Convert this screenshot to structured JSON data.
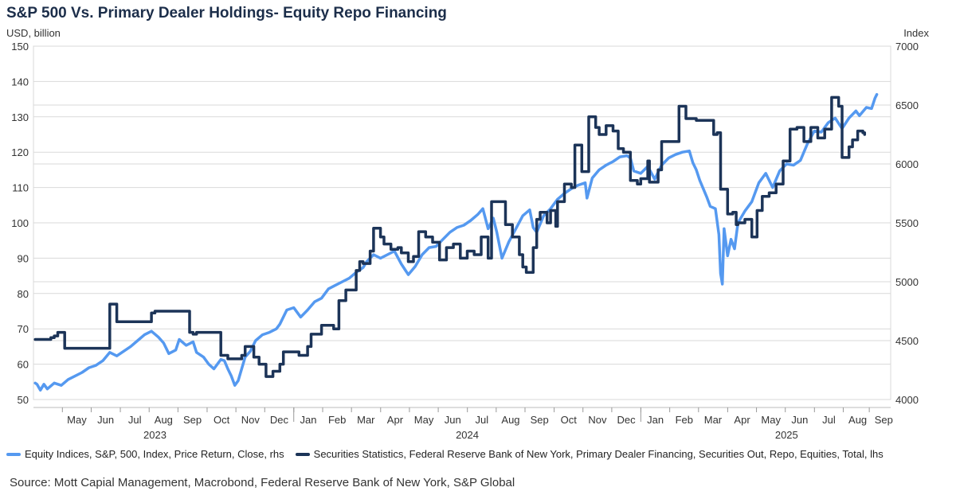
{
  "title": "S&P 500 Vs. Primary Dealer Holdings- Equity Repo Financing",
  "source": "Source: Mott Capial Management, Macrobond, Federal Reserve Bank of New York, S&P Global",
  "colors": {
    "sp500": "#5599f0",
    "repo": "#1c3458",
    "grid": "#d9d9d9"
  },
  "chart_data": {
    "type": "line",
    "title": "S&P 500 Vs. Primary Dealer Holdings- Equity Repo Financing",
    "left_axis": {
      "label": "USD, billion",
      "min": 50,
      "max": 150,
      "ticks": [
        50,
        60,
        70,
        80,
        90,
        100,
        110,
        120,
        130,
        140,
        150
      ]
    },
    "right_axis": {
      "label": "Index",
      "min": 4000,
      "max": 7000,
      "ticks": [
        4000,
        4500,
        5000,
        5500,
        6000,
        6500,
        7000
      ]
    },
    "x_range": [
      2023.25,
      2025.72
    ],
    "month_ticks": [
      {
        "label": "May",
        "t": 2023.375
      },
      {
        "label": "Jun",
        "t": 2023.458
      },
      {
        "label": "Jul",
        "t": 2023.542
      },
      {
        "label": "Aug",
        "t": 2023.625
      },
      {
        "label": "Sep",
        "t": 2023.708
      },
      {
        "label": "Oct",
        "t": 2023.792
      },
      {
        "label": "Nov",
        "t": 2023.875
      },
      {
        "label": "Dec",
        "t": 2023.958
      },
      {
        "label": "Jan",
        "t": 2024.042
      },
      {
        "label": "Feb",
        "t": 2024.125
      },
      {
        "label": "Mar",
        "t": 2024.208
      },
      {
        "label": "Apr",
        "t": 2024.292
      },
      {
        "label": "May",
        "t": 2024.375
      },
      {
        "label": "Jun",
        "t": 2024.458
      },
      {
        "label": "Jul",
        "t": 2024.542
      },
      {
        "label": "Aug",
        "t": 2024.625
      },
      {
        "label": "Sep",
        "t": 2024.708
      },
      {
        "label": "Oct",
        "t": 2024.792
      },
      {
        "label": "Nov",
        "t": 2024.875
      },
      {
        "label": "Dec",
        "t": 2024.958
      },
      {
        "label": "Jan",
        "t": 2025.042
      },
      {
        "label": "Feb",
        "t": 2025.125
      },
      {
        "label": "Mar",
        "t": 2025.208
      },
      {
        "label": "Apr",
        "t": 2025.292
      },
      {
        "label": "May",
        "t": 2025.375
      },
      {
        "label": "Jun",
        "t": 2025.458
      },
      {
        "label": "Jul",
        "t": 2025.542
      },
      {
        "label": "Aug",
        "t": 2025.625
      },
      {
        "label": "Sep",
        "t": 2025.7
      }
    ],
    "years": [
      {
        "label": "2023",
        "t": 2023.6
      },
      {
        "label": "2024",
        "t": 2024.5
      },
      {
        "label": "2025",
        "t": 2025.42
      }
    ],
    "series": [
      {
        "name": "Equity Indices, S&P, 500, Index, Price Return, Close, rhs",
        "axis": "right",
        "style": "smooth",
        "points": [
          [
            2023.255,
            4140
          ],
          [
            2023.26,
            4130
          ],
          [
            2023.27,
            4080
          ],
          [
            2023.28,
            4130
          ],
          [
            2023.29,
            4090
          ],
          [
            2023.31,
            4140
          ],
          [
            2023.33,
            4120
          ],
          [
            2023.35,
            4170
          ],
          [
            2023.37,
            4200
          ],
          [
            2023.39,
            4230
          ],
          [
            2023.41,
            4270
          ],
          [
            2023.43,
            4290
          ],
          [
            2023.45,
            4330
          ],
          [
            2023.47,
            4400
          ],
          [
            2023.49,
            4370
          ],
          [
            2023.51,
            4410
          ],
          [
            2023.53,
            4450
          ],
          [
            2023.55,
            4500
          ],
          [
            2023.57,
            4550
          ],
          [
            2023.59,
            4580
          ],
          [
            2023.61,
            4530
          ],
          [
            2023.625,
            4480
          ],
          [
            2023.64,
            4390
          ],
          [
            2023.66,
            4420
          ],
          [
            2023.67,
            4510
          ],
          [
            2023.69,
            4460
          ],
          [
            2023.71,
            4490
          ],
          [
            2023.72,
            4400
          ],
          [
            2023.74,
            4360
          ],
          [
            2023.755,
            4300
          ],
          [
            2023.77,
            4260
          ],
          [
            2023.79,
            4340
          ],
          [
            2023.8,
            4330
          ],
          [
            2023.81,
            4260
          ],
          [
            2023.82,
            4200
          ],
          [
            2023.83,
            4120
          ],
          [
            2023.84,
            4160
          ],
          [
            2023.86,
            4360
          ],
          [
            2023.875,
            4410
          ],
          [
            2023.89,
            4500
          ],
          [
            2023.91,
            4550
          ],
          [
            2023.93,
            4570
          ],
          [
            2023.95,
            4600
          ],
          [
            2023.96,
            4640
          ],
          [
            2023.98,
            4760
          ],
          [
            2024.0,
            4780
          ],
          [
            2024.02,
            4700
          ],
          [
            2024.04,
            4760
          ],
          [
            2024.06,
            4830
          ],
          [
            2024.08,
            4860
          ],
          [
            2024.1,
            4940
          ],
          [
            2024.12,
            4970
          ],
          [
            2024.14,
            5000
          ],
          [
            2024.16,
            5030
          ],
          [
            2024.18,
            5080
          ],
          [
            2024.2,
            5120
          ],
          [
            2024.21,
            5170
          ],
          [
            2024.23,
            5230
          ],
          [
            2024.25,
            5200
          ],
          [
            2024.27,
            5230
          ],
          [
            2024.29,
            5260
          ],
          [
            2024.31,
            5150
          ],
          [
            2024.33,
            5060
          ],
          [
            2024.35,
            5130
          ],
          [
            2024.37,
            5230
          ],
          [
            2024.39,
            5290
          ],
          [
            2024.41,
            5300
          ],
          [
            2024.43,
            5360
          ],
          [
            2024.45,
            5420
          ],
          [
            2024.47,
            5460
          ],
          [
            2024.49,
            5480
          ],
          [
            2024.51,
            5520
          ],
          [
            2024.53,
            5570
          ],
          [
            2024.545,
            5620
          ],
          [
            2024.56,
            5450
          ],
          [
            2024.575,
            5540
          ],
          [
            2024.585,
            5420
          ],
          [
            2024.6,
            5200
          ],
          [
            2024.62,
            5340
          ],
          [
            2024.64,
            5450
          ],
          [
            2024.66,
            5560
          ],
          [
            2024.68,
            5610
          ],
          [
            2024.69,
            5460
          ],
          [
            2024.7,
            5420
          ],
          [
            2024.72,
            5560
          ],
          [
            2024.74,
            5620
          ],
          [
            2024.76,
            5700
          ],
          [
            2024.78,
            5750
          ],
          [
            2024.8,
            5790
          ],
          [
            2024.82,
            5820
          ],
          [
            2024.84,
            5840
          ],
          [
            2024.845,
            5710
          ],
          [
            2024.86,
            5880
          ],
          [
            2024.88,
            5950
          ],
          [
            2024.9,
            5990
          ],
          [
            2024.92,
            6020
          ],
          [
            2024.94,
            6060
          ],
          [
            2024.96,
            6070
          ],
          [
            2024.97,
            6050
          ],
          [
            2024.98,
            5940
          ],
          [
            2025.0,
            5920
          ],
          [
            2025.02,
            5980
          ],
          [
            2025.04,
            5870
          ],
          [
            2025.06,
            5990
          ],
          [
            2025.08,
            6050
          ],
          [
            2025.1,
            6080
          ],
          [
            2025.12,
            6100
          ],
          [
            2025.14,
            6110
          ],
          [
            2025.15,
            6010
          ],
          [
            2025.16,
            5950
          ],
          [
            2025.17,
            5860
          ],
          [
            2025.19,
            5720
          ],
          [
            2025.2,
            5640
          ],
          [
            2025.215,
            5620
          ],
          [
            2025.225,
            5400
          ],
          [
            2025.23,
            5070
          ],
          [
            2025.235,
            4980
          ],
          [
            2025.24,
            5450
          ],
          [
            2025.25,
            5220
          ],
          [
            2025.26,
            5360
          ],
          [
            2025.27,
            5280
          ],
          [
            2025.28,
            5500
          ],
          [
            2025.3,
            5600
          ],
          [
            2025.32,
            5680
          ],
          [
            2025.34,
            5840
          ],
          [
            2025.36,
            5920
          ],
          [
            2025.38,
            5800
          ],
          [
            2025.4,
            5940
          ],
          [
            2025.42,
            6000
          ],
          [
            2025.44,
            5990
          ],
          [
            2025.46,
            6030
          ],
          [
            2025.48,
            6170
          ],
          [
            2025.5,
            6280
          ],
          [
            2025.52,
            6270
          ],
          [
            2025.54,
            6350
          ],
          [
            2025.56,
            6390
          ],
          [
            2025.58,
            6300
          ],
          [
            2025.6,
            6390
          ],
          [
            2025.62,
            6450
          ],
          [
            2025.63,
            6410
          ],
          [
            2025.65,
            6480
          ],
          [
            2025.665,
            6470
          ],
          [
            2025.675,
            6560
          ],
          [
            2025.68,
            6590
          ]
        ]
      },
      {
        "name": "Securities Statistics, Federal Reserve Bank of New York, Primary Dealer Financing, Securities Out, Repo, Equities, Total, lhs",
        "axis": "left",
        "style": "step",
        "points": [
          [
            2023.255,
            67
          ],
          [
            2023.3,
            67.5
          ],
          [
            2023.31,
            68
          ],
          [
            2023.32,
            69
          ],
          [
            2023.34,
            64.5
          ],
          [
            2023.465,
            64.5
          ],
          [
            2023.47,
            77
          ],
          [
            2023.49,
            72
          ],
          [
            2023.58,
            72
          ],
          [
            2023.59,
            74.5
          ],
          [
            2023.6,
            75
          ],
          [
            2023.69,
            75
          ],
          [
            2023.7,
            69
          ],
          [
            2023.71,
            68.5
          ],
          [
            2023.72,
            69
          ],
          [
            2023.78,
            69
          ],
          [
            2023.79,
            62.5
          ],
          [
            2023.81,
            61.5
          ],
          [
            2023.85,
            62.5
          ],
          [
            2023.86,
            65
          ],
          [
            2023.885,
            62
          ],
          [
            2023.9,
            60
          ],
          [
            2023.92,
            56.5
          ],
          [
            2023.94,
            58
          ],
          [
            2023.96,
            60
          ],
          [
            2023.97,
            63.5
          ],
          [
            2024.015,
            62.5
          ],
          [
            2024.04,
            65
          ],
          [
            2024.05,
            68.5
          ],
          [
            2024.08,
            71
          ],
          [
            2024.115,
            70
          ],
          [
            2024.13,
            78
          ],
          [
            2024.15,
            81
          ],
          [
            2024.18,
            86.5
          ],
          [
            2024.19,
            89
          ],
          [
            2024.2,
            88.5
          ],
          [
            2024.22,
            92
          ],
          [
            2024.23,
            98.5
          ],
          [
            2024.25,
            96
          ],
          [
            2024.26,
            94
          ],
          [
            2024.28,
            92.5
          ],
          [
            2024.3,
            93
          ],
          [
            2024.31,
            91.5
          ],
          [
            2024.33,
            89
          ],
          [
            2024.345,
            90.5
          ],
          [
            2024.36,
            97.5
          ],
          [
            2024.38,
            96
          ],
          [
            2024.4,
            94.5
          ],
          [
            2024.42,
            89.5
          ],
          [
            2024.44,
            93
          ],
          [
            2024.46,
            94
          ],
          [
            2024.48,
            90
          ],
          [
            2024.5,
            92
          ],
          [
            2024.52,
            91
          ],
          [
            2024.54,
            96
          ],
          [
            2024.56,
            90
          ],
          [
            2024.57,
            106
          ],
          [
            2024.61,
            99.5
          ],
          [
            2024.63,
            96
          ],
          [
            2024.65,
            91
          ],
          [
            2024.66,
            87.5
          ],
          [
            2024.67,
            86
          ],
          [
            2024.69,
            93
          ],
          [
            2024.7,
            101
          ],
          [
            2024.71,
            103
          ],
          [
            2024.73,
            100
          ],
          [
            2024.74,
            103.5
          ],
          [
            2024.755,
            99
          ],
          [
            2024.76,
            106
          ],
          [
            2024.78,
            111
          ],
          [
            2024.8,
            110
          ],
          [
            2024.81,
            122
          ],
          [
            2024.83,
            114.5
          ],
          [
            2024.85,
            130
          ],
          [
            2024.87,
            127
          ],
          [
            2024.88,
            125
          ],
          [
            2024.9,
            127.5
          ],
          [
            2024.92,
            126
          ],
          [
            2024.935,
            121
          ],
          [
            2024.95,
            120
          ],
          [
            2024.97,
            112
          ],
          [
            2024.99,
            111
          ],
          [
            2025.0,
            112.5
          ],
          [
            2025.02,
            117.5
          ],
          [
            2025.025,
            111.5
          ],
          [
            2025.05,
            115
          ],
          [
            2025.06,
            123
          ],
          [
            2025.11,
            133
          ],
          [
            2025.13,
            129.5
          ],
          [
            2025.16,
            129
          ],
          [
            2025.21,
            125
          ],
          [
            2025.22,
            125.5
          ],
          [
            2025.23,
            109.5
          ],
          [
            2025.25,
            102.5
          ],
          [
            2025.265,
            103
          ],
          [
            2025.275,
            99.5
          ],
          [
            2025.28,
            100
          ],
          [
            2025.3,
            101
          ],
          [
            2025.32,
            96
          ],
          [
            2025.335,
            103.5
          ],
          [
            2025.35,
            107.5
          ],
          [
            2025.37,
            108.5
          ],
          [
            2025.39,
            111
          ],
          [
            2025.41,
            117.5
          ],
          [
            2025.43,
            126.5
          ],
          [
            2025.45,
            127
          ],
          [
            2025.47,
            123
          ],
          [
            2025.49,
            127
          ],
          [
            2025.51,
            124
          ],
          [
            2025.53,
            126.5
          ],
          [
            2025.55,
            135.5
          ],
          [
            2025.57,
            133
          ],
          [
            2025.58,
            118.5
          ],
          [
            2025.6,
            121.5
          ],
          [
            2025.61,
            123.5
          ],
          [
            2025.625,
            126
          ],
          [
            2025.64,
            125.5
          ],
          [
            2025.645,
            125
          ]
        ]
      }
    ]
  }
}
